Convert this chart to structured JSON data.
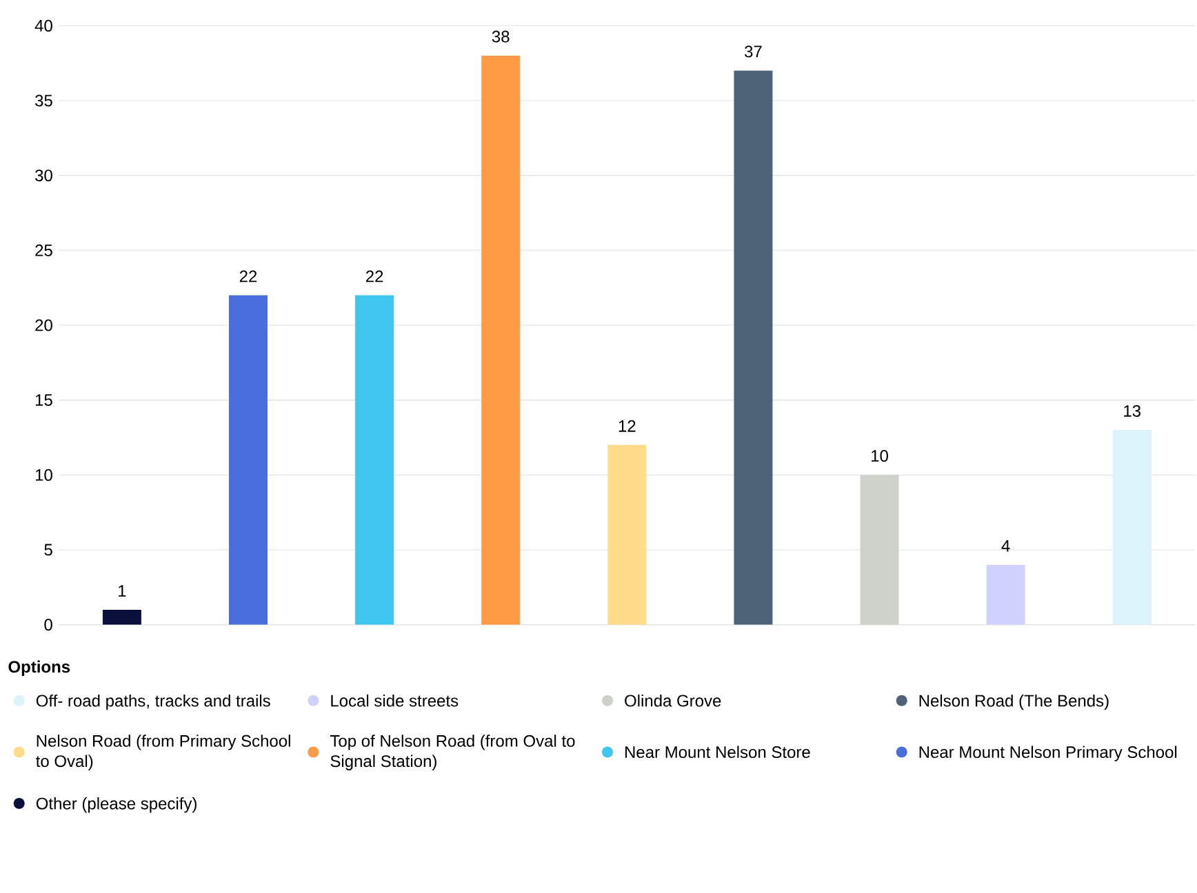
{
  "chart_data": {
    "type": "bar",
    "legend_title": "Options",
    "categories": [
      null,
      null,
      null,
      null,
      null,
      null,
      null,
      null,
      null
    ],
    "series": [
      {
        "name": "Off- road paths, tracks and trails",
        "color": "#dcf3fb",
        "values": [
          null,
          null,
          null,
          null,
          null,
          null,
          null,
          null,
          13
        ]
      },
      {
        "name": "Local side streets",
        "color": "#d0d1fd",
        "values": [
          null,
          null,
          null,
          null,
          null,
          null,
          null,
          4,
          null
        ]
      },
      {
        "name": "Olinda Grove",
        "color": "#cdd1ca",
        "values": [
          null,
          null,
          null,
          null,
          null,
          null,
          10,
          null,
          null
        ]
      },
      {
        "name": "Nelson Road (The Bends)",
        "color": "#4e6378",
        "values": [
          null,
          null,
          null,
          null,
          null,
          37,
          null,
          null,
          null
        ]
      },
      {
        "name": "Nelson Road (from Primary School to Oval)",
        "color": "#ffdb8a",
        "values": [
          null,
          null,
          null,
          null,
          12,
          null,
          null,
          null,
          null
        ]
      },
      {
        "name": "Top of Nelson Road (from Oval to Signal Station)",
        "color": "#ff9a45",
        "values": [
          null,
          null,
          null,
          38,
          null,
          null,
          null,
          null,
          null
        ]
      },
      {
        "name": "Near Mount Nelson Store",
        "color": "#3ec6ee",
        "values": [
          null,
          null,
          22,
          null,
          null,
          null,
          null,
          null,
          null
        ]
      },
      {
        "name": "Near Mount Nelson Primary School",
        "color": "#4a6fdc",
        "values": [
          null,
          22,
          null,
          null,
          null,
          null,
          null,
          null,
          null
        ]
      },
      {
        "name": "Other (please specify)",
        "color": "#0a0f3c",
        "values": [
          1,
          null,
          null,
          null,
          null,
          null,
          null,
          null,
          null
        ]
      }
    ],
    "ylim": [
      0,
      40
    ],
    "yticks": [
      0,
      5,
      10,
      15,
      20,
      25,
      30,
      35,
      40
    ],
    "grid": "y",
    "legend": "bottom",
    "data_labels": true
  }
}
